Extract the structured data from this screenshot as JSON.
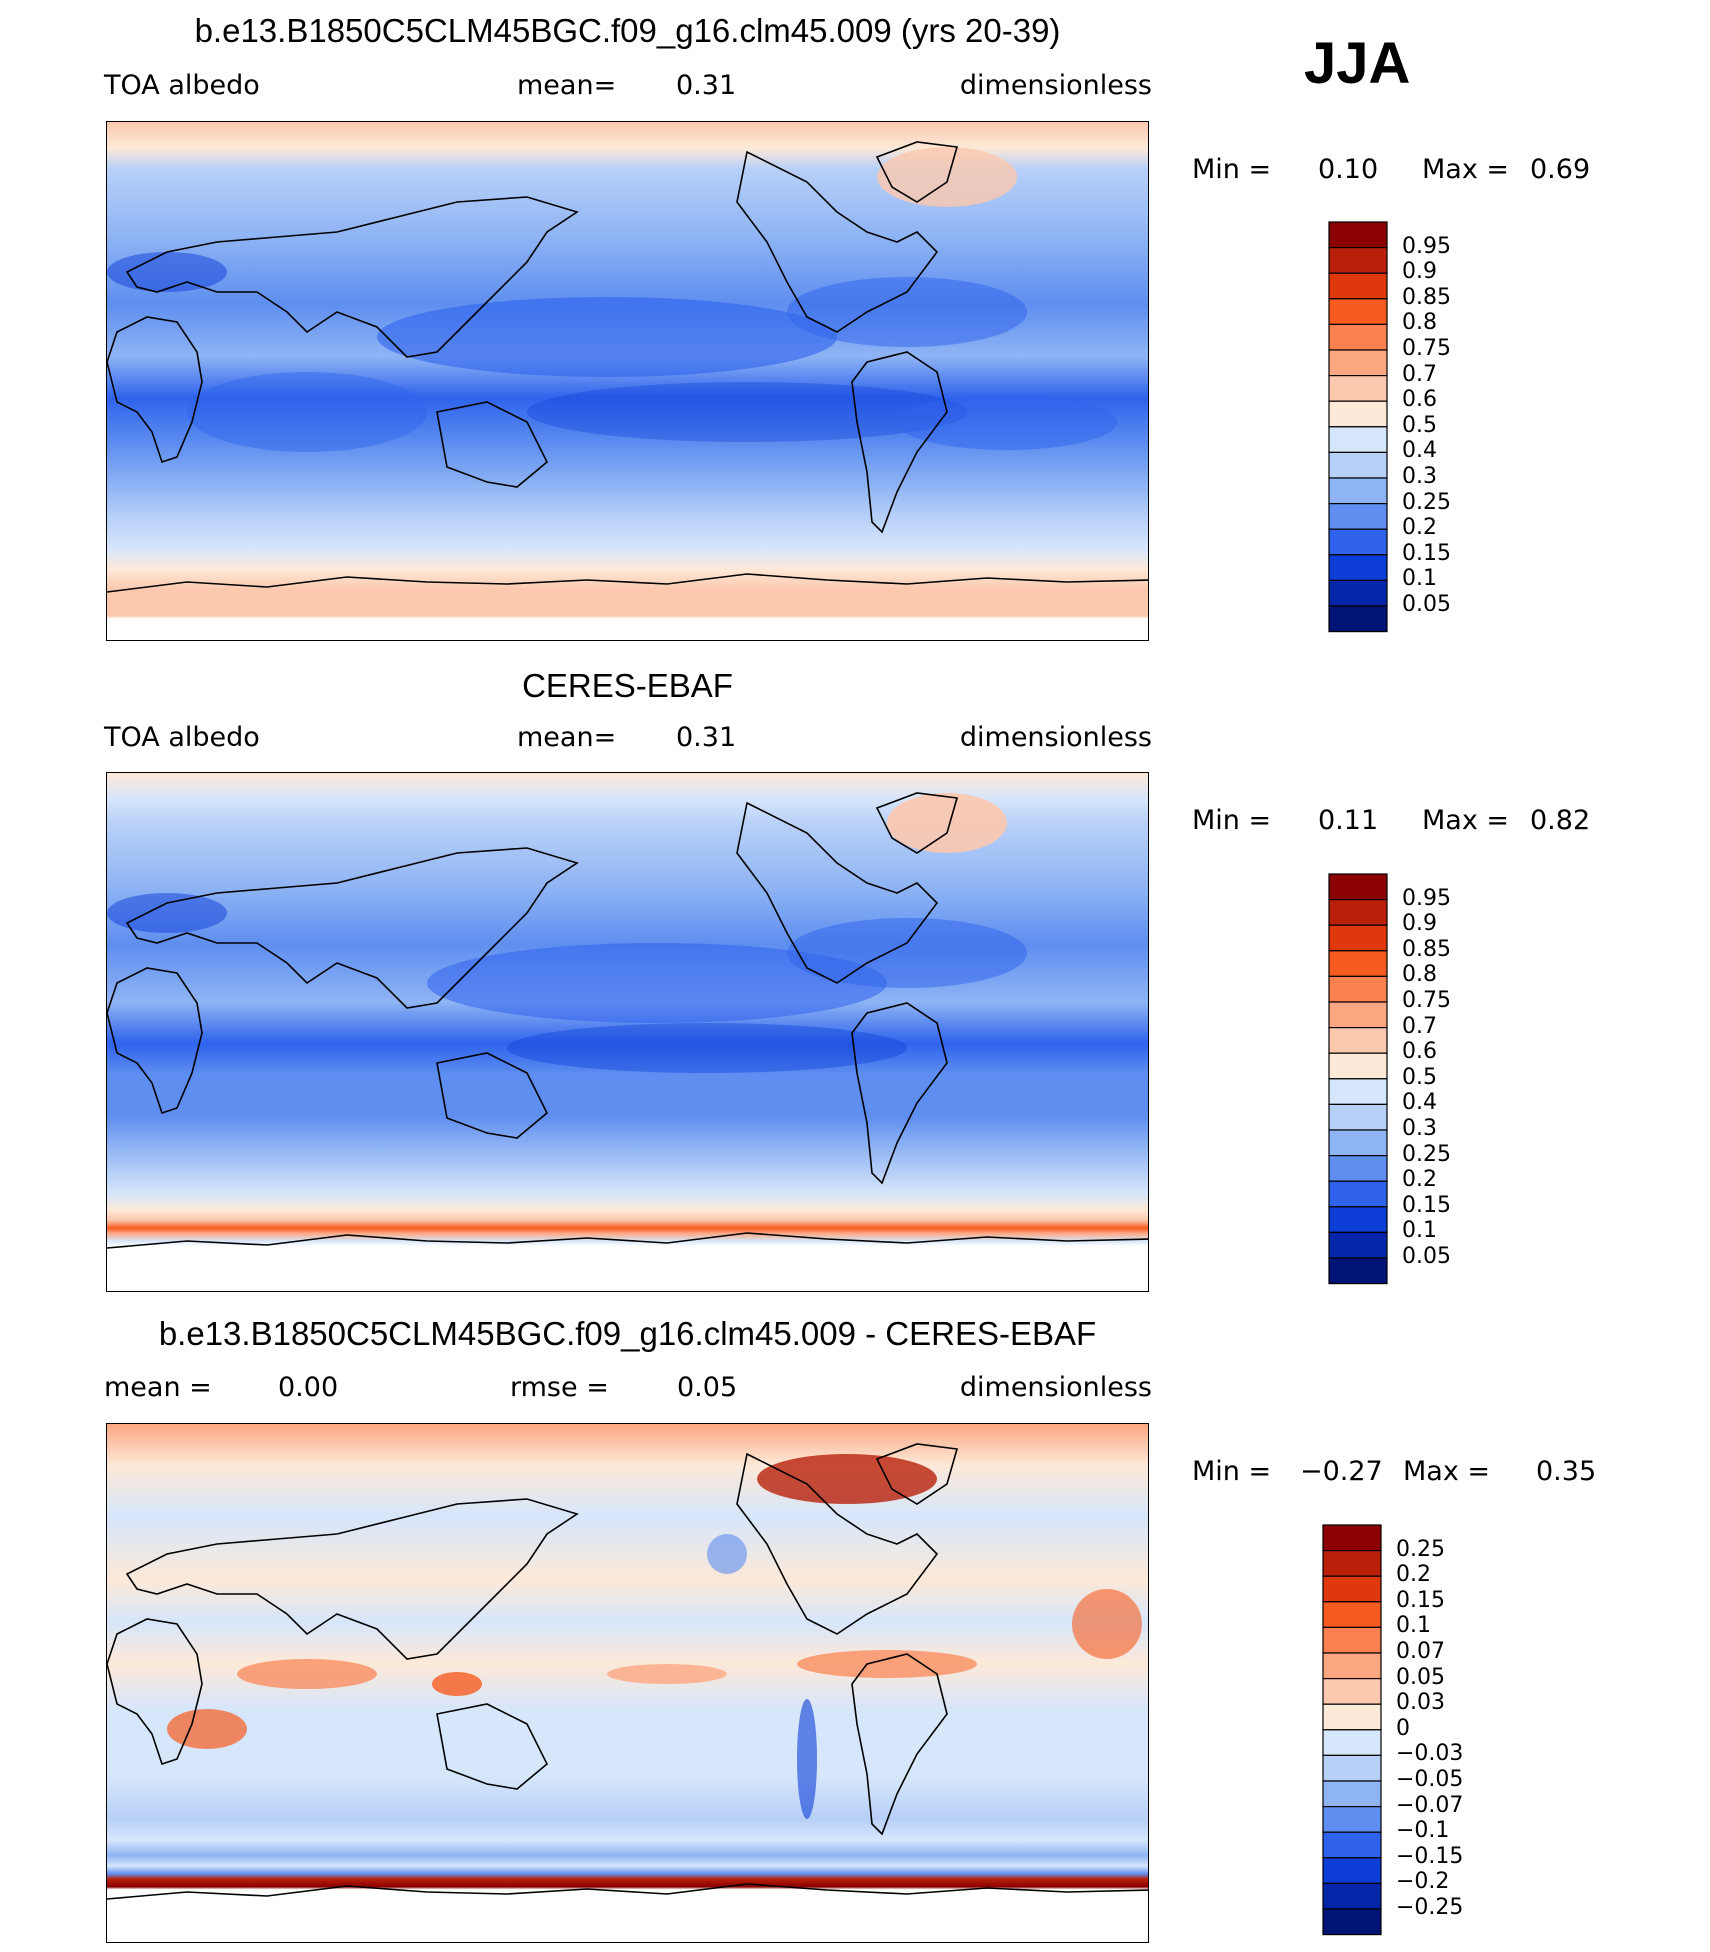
{
  "season": "JJA",
  "panels": [
    {
      "title": "b.e13.B1850C5CLM45BGC.f09_g16.clm45.009 (yrs 20-39)",
      "variable": "TOA albedo",
      "stat1": "mean=",
      "stat1_value": "0.31",
      "stat2": "",
      "stat2_value": "",
      "units": "dimensionless",
      "min_label": "Min =",
      "min_value": "0.10",
      "max_label": "Max =",
      "max_value": "0.69",
      "colorbar": {
        "ticks": [
          "0.95",
          "0.9",
          "0.85",
          "0.8",
          "0.75",
          "0.7",
          "0.6",
          "0.5",
          "0.4",
          "0.3",
          "0.25",
          "0.2",
          "0.15",
          "0.1",
          "0.05"
        ],
        "colors": [
          "#8b0000",
          "#b8200a",
          "#e0380d",
          "#f75b20",
          "#fb8250",
          "#fca782",
          "#fcc8ae",
          "#fde9d8",
          "#d6e6fb",
          "#b7d0f8",
          "#8fb4f4",
          "#5e8ef0",
          "#2f63ec",
          "#0d3ed7",
          "#0526a8",
          "#001476"
        ]
      }
    },
    {
      "title": "CERES-EBAF",
      "variable": "TOA albedo",
      "stat1": "mean=",
      "stat1_value": "0.31",
      "stat2": "",
      "stat2_value": "",
      "units": "dimensionless",
      "min_label": "Min =",
      "min_value": "0.11",
      "max_label": "Max =",
      "max_value": "0.82",
      "colorbar": {
        "ticks": [
          "0.95",
          "0.9",
          "0.85",
          "0.8",
          "0.75",
          "0.7",
          "0.6",
          "0.5",
          "0.4",
          "0.3",
          "0.25",
          "0.2",
          "0.15",
          "0.1",
          "0.05"
        ],
        "colors": [
          "#8b0000",
          "#b8200a",
          "#e0380d",
          "#f75b20",
          "#fb8250",
          "#fca782",
          "#fcc8ae",
          "#fde9d8",
          "#d6e6fb",
          "#b7d0f8",
          "#8fb4f4",
          "#5e8ef0",
          "#2f63ec",
          "#0d3ed7",
          "#0526a8",
          "#001476"
        ]
      }
    },
    {
      "title": "b.e13.B1850C5CLM45BGC.f09_g16.clm45.009 - CERES-EBAF",
      "variable": "",
      "stat1": "mean =",
      "stat1_value": "0.00",
      "stat2": "rmse =",
      "stat2_value": "0.05",
      "units": "dimensionless",
      "min_label": "Min =",
      "min_value": "−0.27",
      "max_label": "Max =",
      "max_value": "0.35",
      "colorbar": {
        "ticks": [
          "0.25",
          "0.2",
          "0.15",
          "0.1",
          "0.07",
          "0.05",
          "0.03",
          "0",
          "−0.03",
          "−0.05",
          "−0.07",
          "−0.1",
          "−0.15",
          "−0.2",
          "−0.25"
        ],
        "colors": [
          "#8b0000",
          "#b8200a",
          "#e0380d",
          "#f75b20",
          "#fb8250",
          "#fca782",
          "#fcc8ae",
          "#fde9d8",
          "#d6e6fb",
          "#b7d0f8",
          "#8fb4f4",
          "#5e8ef0",
          "#2f63ec",
          "#0d3ed7",
          "#0526a8",
          "#001476"
        ]
      }
    }
  ]
}
